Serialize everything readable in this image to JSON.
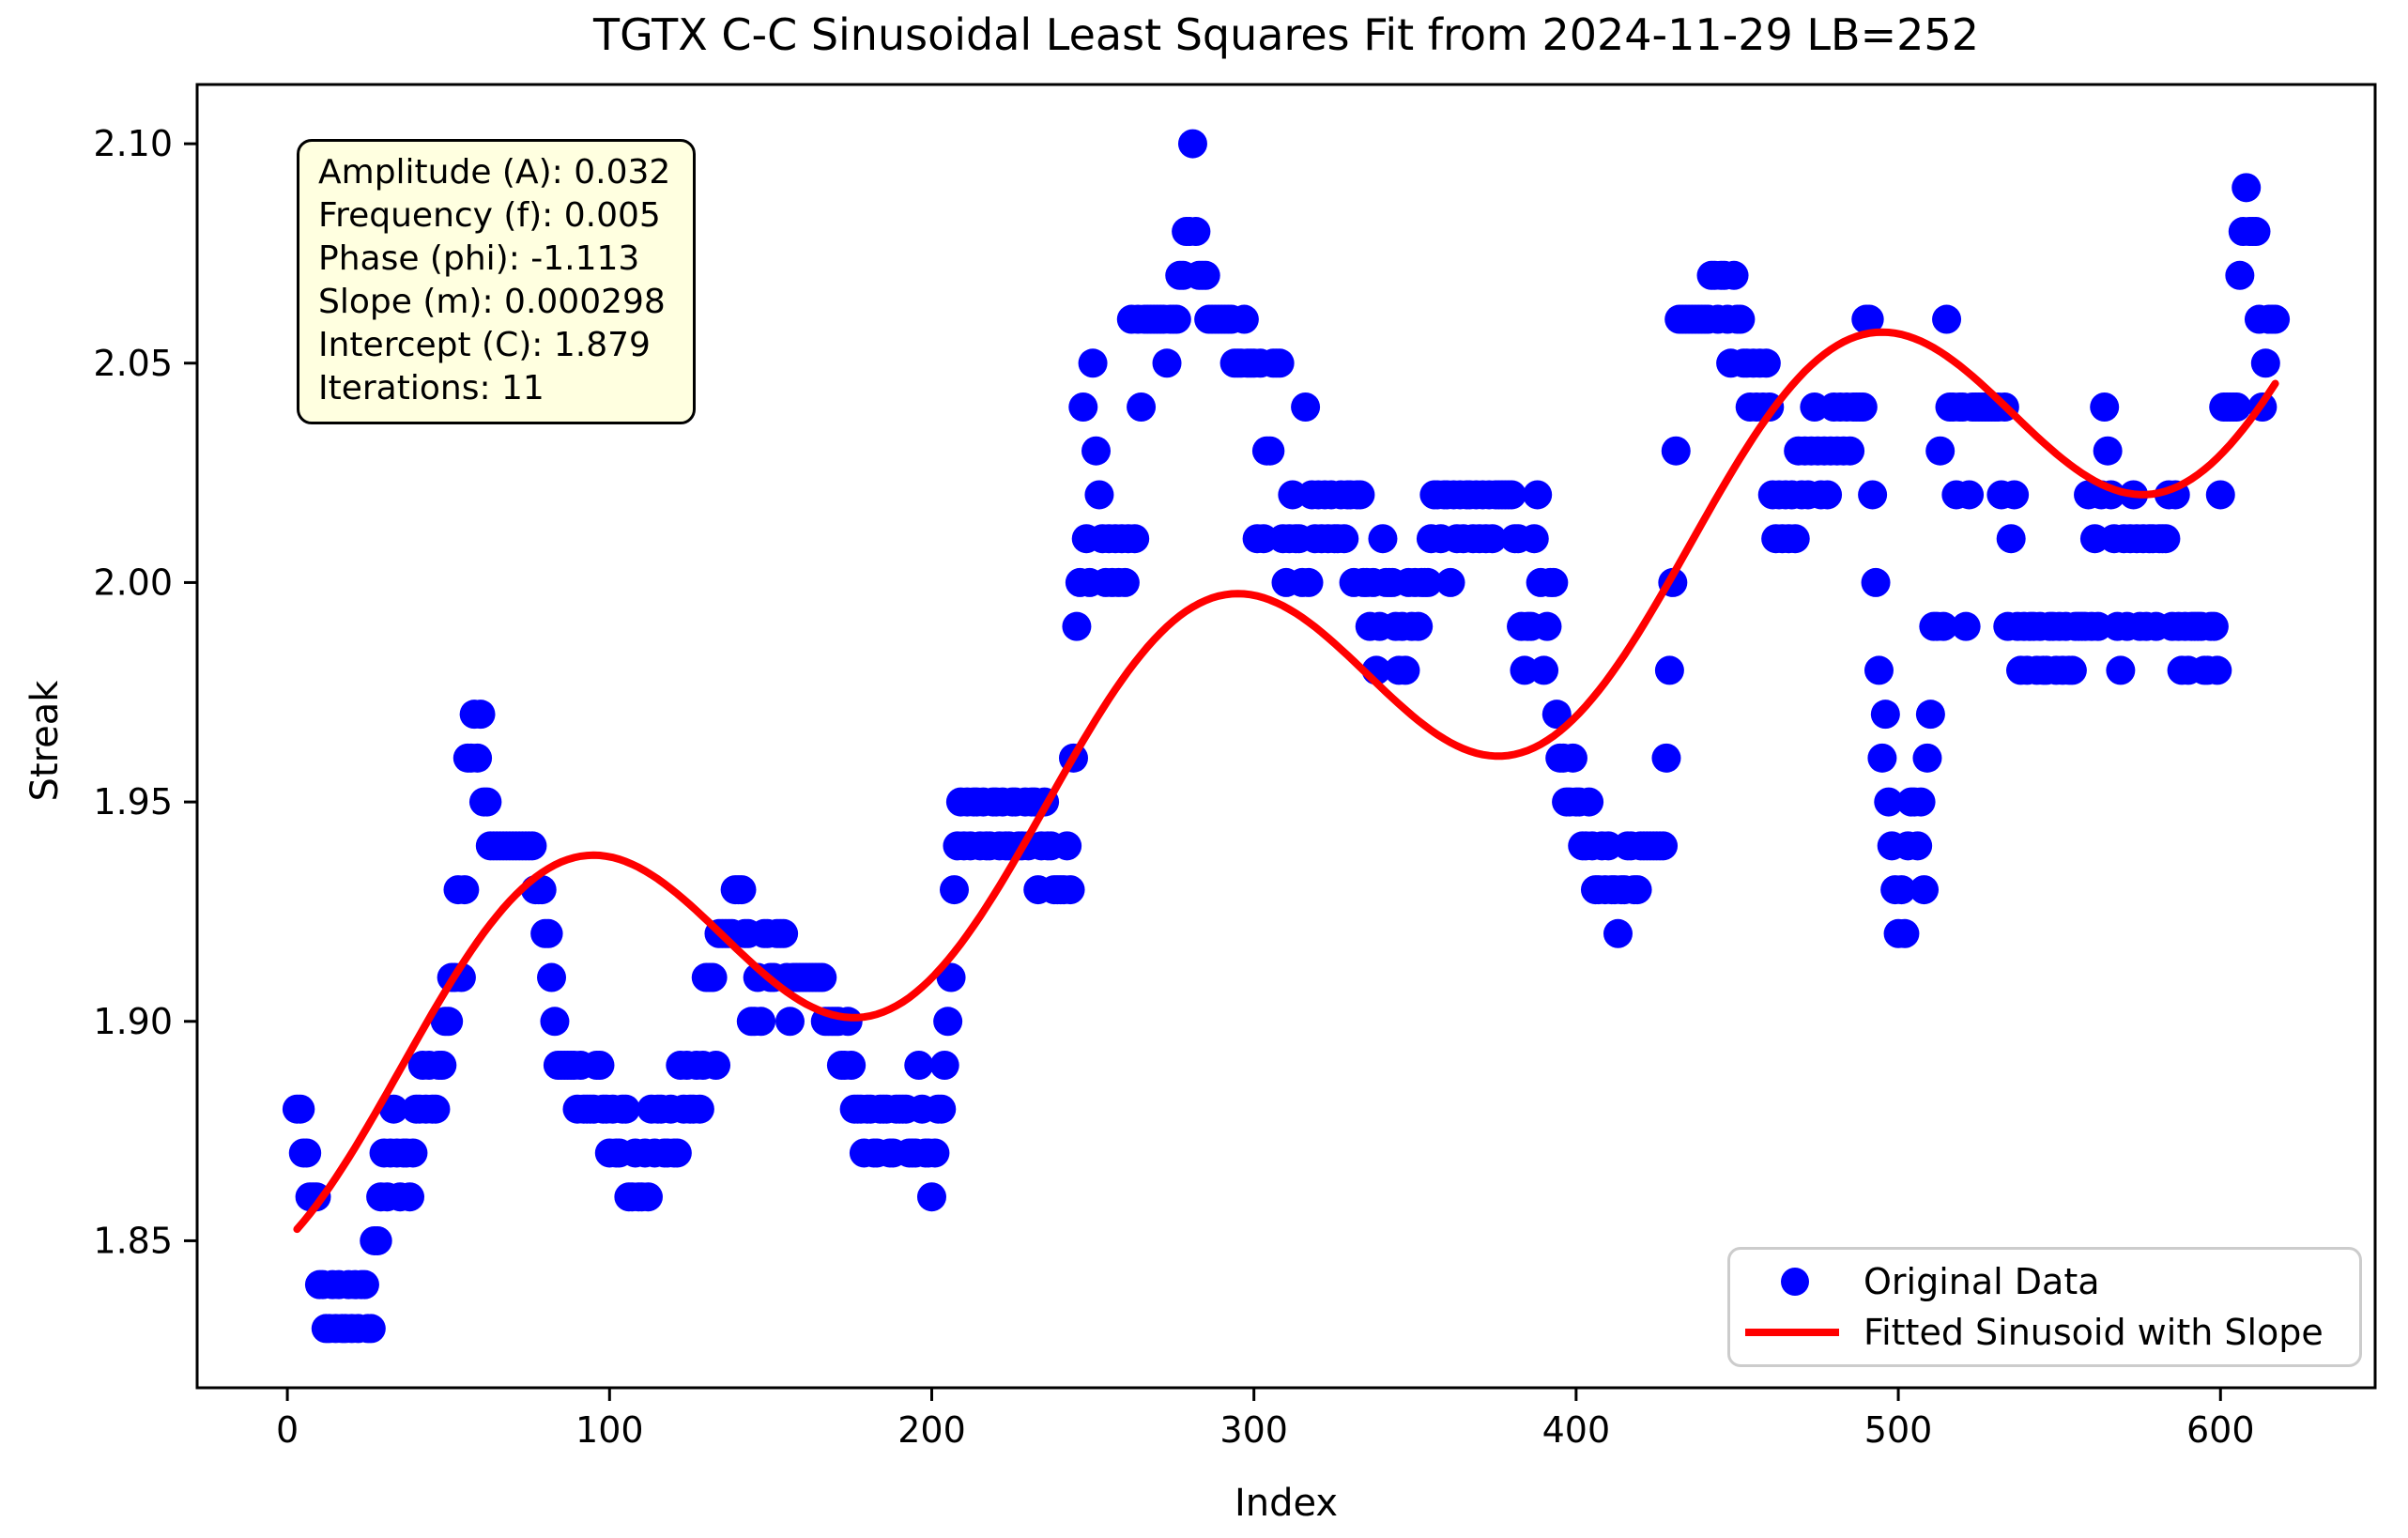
{
  "figure": {
    "title": "TGTX C-C Sinusoidal Least Squares Fit from 2024-11-29 LB=252",
    "background": "#ffffff"
  },
  "axes": {
    "xlabel": "Index",
    "ylabel": "Streak",
    "x_tick_labels": [
      "0",
      "100",
      "200",
      "300",
      "400",
      "500",
      "600"
    ],
    "y_tick_labels": [
      "1.85",
      "1.90",
      "1.95",
      "2.00",
      "2.05",
      "2.10"
    ]
  },
  "annotation": {
    "background": "#ffffe0",
    "lines": [
      "Amplitude (A): 0.032",
      "Frequency (f): 0.005",
      "Phase (phi): -1.113",
      "Slope (m): 0.000298",
      "Intercept (C): 1.879",
      "Iterations: 11"
    ]
  },
  "legend": {
    "items": [
      {
        "label": "Original Data",
        "marker": "dot",
        "color": "#0000ff"
      },
      {
        "label": "Fitted Sinusoid with Slope",
        "marker": "line",
        "color": "#ff0000"
      }
    ]
  },
  "colors": {
    "scatter": "#0000ff",
    "fit_line": "#ff0000",
    "annotation_bg": "#ffffe0",
    "legend_border": "#cccccc",
    "axis": "#000000"
  },
  "chart_data": {
    "type": "scatter",
    "title": "TGTX C-C Sinusoidal Least Squares Fit from 2024-11-29 LB=252",
    "xlabel": "Index",
    "ylabel": "Streak",
    "xlim": [
      -28,
      648
    ],
    "ylim": [
      1.8165,
      2.1135
    ],
    "x_ticks": [
      0,
      100,
      200,
      300,
      400,
      500,
      600
    ],
    "y_ticks": [
      1.85,
      1.9,
      1.95,
      2.0,
      2.05,
      2.1
    ],
    "grid": false,
    "legend_position": "lower right",
    "fit_stats": {
      "amplitude_A": 0.032,
      "frequency_f": 0.005,
      "phase_phi": -1.113,
      "slope_m": 0.000298,
      "intercept_C": 1.879,
      "iterations": 11
    },
    "series": [
      {
        "name": "Original Data",
        "type": "scatter",
        "color": "#0000ff",
        "start_index": 3,
        "values": [
          1.88,
          1.88,
          1.87,
          1.87,
          1.86,
          1.86,
          1.86,
          1.84,
          1.84,
          1.83,
          1.83,
          1.84,
          1.83,
          1.84,
          1.83,
          1.83,
          1.84,
          1.83,
          1.84,
          1.83,
          1.84,
          1.84,
          1.83,
          1.83,
          1.85,
          1.85,
          1.86,
          1.87,
          1.86,
          1.87,
          1.88,
          1.87,
          1.86,
          1.87,
          1.87,
          1.86,
          1.87,
          1.88,
          1.88,
          1.89,
          1.88,
          1.89,
          1.88,
          1.88,
          1.89,
          1.89,
          1.9,
          1.9,
          1.91,
          1.91,
          1.93,
          1.91,
          1.93,
          1.96,
          1.96,
          1.97,
          1.96,
          1.97,
          1.95,
          1.95,
          1.94,
          1.94,
          1.94,
          1.94,
          1.94,
          1.94,
          1.94,
          1.94,
          1.94,
          1.94,
          1.94,
          1.94,
          1.94,
          1.94,
          1.93,
          1.93,
          1.93,
          1.92,
          1.92,
          1.91,
          1.9,
          1.89,
          1.89,
          1.89,
          1.89,
          1.89,
          1.89,
          1.88,
          1.89,
          1.88,
          1.88,
          1.88,
          1.88,
          1.89,
          1.89,
          1.88,
          1.88,
          1.87,
          1.88,
          1.87,
          1.87,
          1.88,
          1.88,
          1.86,
          1.86,
          1.87,
          1.86,
          1.86,
          1.87,
          1.86,
          1.88,
          1.87,
          1.88,
          1.88,
          1.87,
          1.87,
          1.88,
          1.87,
          1.87,
          1.89,
          1.88,
          1.89,
          1.88,
          1.88,
          1.89,
          1.88,
          1.89,
          1.91,
          1.91,
          1.91,
          1.89,
          1.92,
          1.92,
          1.92,
          1.92,
          1.92,
          1.93,
          1.93,
          1.93,
          1.92,
          1.92,
          1.9,
          1.9,
          1.91,
          1.9,
          1.92,
          1.92,
          1.91,
          1.91,
          1.92,
          1.92,
          1.92,
          1.91,
          1.9,
          1.91,
          1.91,
          1.91,
          1.91,
          1.91,
          1.91,
          1.91,
          1.91,
          1.91,
          1.91,
          1.9,
          1.9,
          1.9,
          1.9,
          1.9,
          1.89,
          1.89,
          1.9,
          1.89,
          1.88,
          1.88,
          1.88,
          1.87,
          1.88,
          1.88,
          1.87,
          1.87,
          1.88,
          1.88,
          1.88,
          1.87,
          1.87,
          1.88,
          1.88,
          1.88,
          1.88,
          1.87,
          1.87,
          1.87,
          1.89,
          1.88,
          1.87,
          1.87,
          1.86,
          1.87,
          1.88,
          1.88,
          1.89,
          1.9,
          1.91,
          1.93,
          1.94,
          1.95,
          1.94,
          1.95,
          1.94,
          1.95,
          1.95,
          1.94,
          1.95,
          1.94,
          1.94,
          1.95,
          1.95,
          1.94,
          1.95,
          1.94,
          1.94,
          1.95,
          1.95,
          1.94,
          1.94,
          1.95,
          1.94,
          1.95,
          1.95,
          1.93,
          1.94,
          1.95,
          1.94,
          1.94,
          1.93,
          1.93,
          1.93,
          1.93,
          1.94,
          1.93,
          1.96,
          1.99,
          2.0,
          2.04,
          2.01,
          2.0,
          2.05,
          2.03,
          2.02,
          2.01,
          2.0,
          2.01,
          2.0,
          2.01,
          2.0,
          2.01,
          2.0,
          2.01,
          2.06,
          2.01,
          2.06,
          2.04,
          2.06,
          2.06,
          2.06,
          2.06,
          2.06,
          2.06,
          2.06,
          2.05,
          2.06,
          2.06,
          2.06,
          2.07,
          2.07,
          2.08,
          2.08,
          2.1,
          2.08,
          2.07,
          2.07,
          2.07,
          2.06,
          2.06,
          2.06,
          2.06,
          2.06,
          2.06,
          2.06,
          2.06,
          2.05,
          2.05,
          2.05,
          2.06,
          2.05,
          2.05,
          2.05,
          2.01,
          2.05,
          2.01,
          2.03,
          2.03,
          2.05,
          2.05,
          2.05,
          2.01,
          2.0,
          2.01,
          2.02,
          2.01,
          2.01,
          2.0,
          2.04,
          2.0,
          2.02,
          2.01,
          2.02,
          2.01,
          2.02,
          2.01,
          2.02,
          2.01,
          2.01,
          2.02,
          2.01,
          2.02,
          2.02,
          2.0,
          2.02,
          2.02,
          2.0,
          2.0,
          1.99,
          2.0,
          1.98,
          1.99,
          2.01,
          2.0,
          2.0,
          2.0,
          1.99,
          1.98,
          1.99,
          1.98,
          2.0,
          1.99,
          2.0,
          1.99,
          2.0,
          2.0,
          2.0,
          2.01,
          2.02,
          2.02,
          2.01,
          2.02,
          2.02,
          2.0,
          2.02,
          2.01,
          2.02,
          2.01,
          2.02,
          2.02,
          2.01,
          2.02,
          2.01,
          2.02,
          2.01,
          2.02,
          2.01,
          2.02,
          2.02,
          2.02,
          2.02,
          2.02,
          2.02,
          2.01,
          2.01,
          1.99,
          1.98,
          1.99,
          1.99,
          2.01,
          2.02,
          2.0,
          1.98,
          1.99,
          2.0,
          2.0,
          1.97,
          1.96,
          1.96,
          1.95,
          1.95,
          1.96,
          1.95,
          1.95,
          1.94,
          1.94,
          1.95,
          1.94,
          1.93,
          1.93,
          1.94,
          1.93,
          1.94,
          1.93,
          1.93,
          1.92,
          1.93,
          1.93,
          1.94,
          1.94,
          1.93,
          1.93,
          1.94,
          1.94,
          1.94,
          1.94,
          1.94,
          1.94,
          1.94,
          1.94,
          1.96,
          1.98,
          2.0,
          2.03,
          2.06,
          2.06,
          2.06,
          2.06,
          2.06,
          2.06,
          2.06,
          2.06,
          2.06,
          2.06,
          2.07,
          2.07,
          2.06,
          2.07,
          2.07,
          2.06,
          2.05,
          2.07,
          2.06,
          2.06,
          2.05,
          2.05,
          2.04,
          2.05,
          2.04,
          2.05,
          2.04,
          2.05,
          2.04,
          2.02,
          2.01,
          2.02,
          2.01,
          2.02,
          2.01,
          2.02,
          2.01,
          2.03,
          2.02,
          2.03,
          2.02,
          2.03,
          2.04,
          2.03,
          2.02,
          2.03,
          2.02,
          2.03,
          2.04,
          2.03,
          2.04,
          2.03,
          2.04,
          2.03,
          2.04,
          2.04,
          2.04,
          2.04,
          2.06,
          2.06,
          2.02,
          2.0,
          1.98,
          1.96,
          1.97,
          1.95,
          1.94,
          1.93,
          1.92,
          1.93,
          1.92,
          1.94,
          1.95,
          1.95,
          1.94,
          1.95,
          1.93,
          1.96,
          1.97,
          1.99,
          1.99,
          2.03,
          1.99,
          2.06,
          2.04,
          2.04,
          2.02,
          2.04,
          2.04,
          1.99,
          2.02,
          2.04,
          2.04,
          2.04,
          2.04,
          2.04,
          2.04,
          2.04,
          2.04,
          2.04,
          2.02,
          2.04,
          1.99,
          2.01,
          2.02,
          1.99,
          1.98,
          1.99,
          1.98,
          1.99,
          1.99,
          1.98,
          1.99,
          1.98,
          1.98,
          1.99,
          1.99,
          1.98,
          1.99,
          1.98,
          1.99,
          1.98,
          1.98,
          1.99,
          1.99,
          1.99,
          1.99,
          2.02,
          1.99,
          2.01,
          1.99,
          2.02,
          2.04,
          2.03,
          2.02,
          2.01,
          1.99,
          1.98,
          2.01,
          1.99,
          2.01,
          2.02,
          2.01,
          1.99,
          2.01,
          1.99,
          2.01,
          2.01,
          1.99,
          2.01,
          2.01,
          2.01,
          2.02,
          1.99,
          2.02,
          1.99,
          1.98,
          1.99,
          1.98,
          1.99,
          1.99,
          1.99,
          1.99,
          1.98,
          1.98,
          1.99,
          1.99,
          1.98,
          2.02,
          2.04,
          2.04,
          2.04,
          2.04,
          2.04,
          2.07,
          2.08,
          2.09,
          2.08,
          2.08,
          2.08,
          2.06,
          2.04,
          2.05,
          2.06,
          2.06,
          2.06
        ]
      },
      {
        "name": "Fitted Sinusoid with Slope",
        "type": "line",
        "color": "#ff0000",
        "model": "y = A*sin(2*pi*f*x + phi) + m*x + C",
        "params": {
          "A": 0.032,
          "f": 0.005,
          "phi": -1.113,
          "m": 0.000298,
          "C": 1.879
        },
        "x_range": [
          3,
          617
        ]
      }
    ]
  }
}
